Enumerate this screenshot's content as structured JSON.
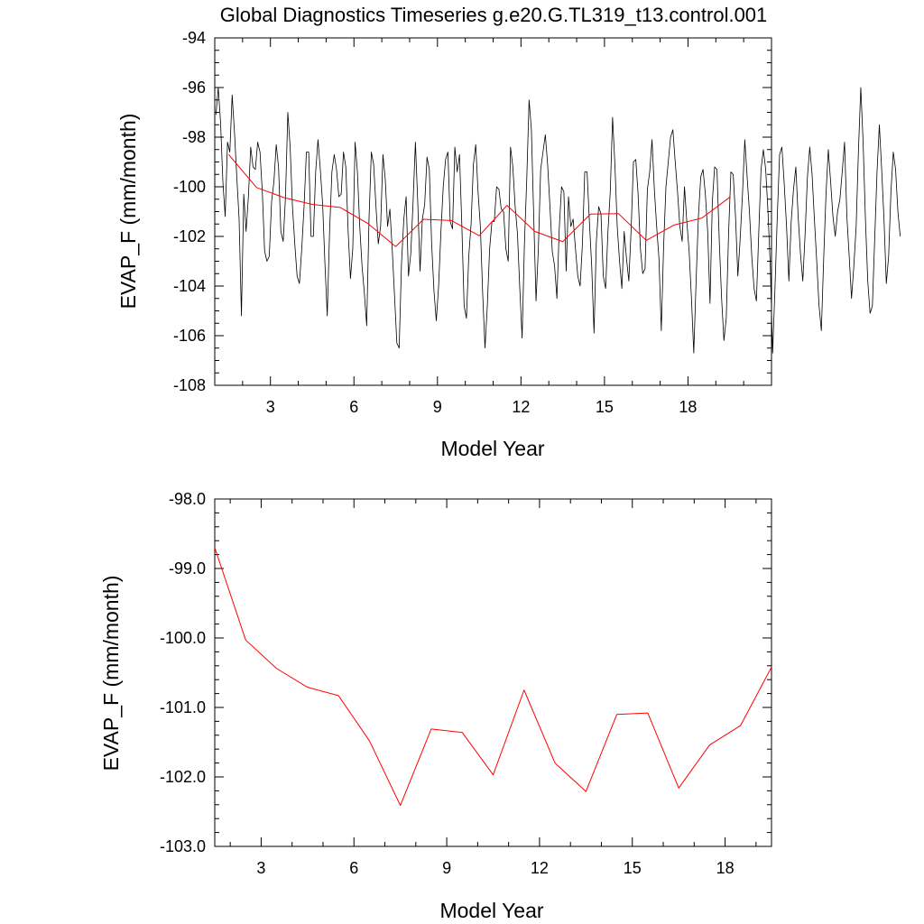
{
  "colors": {
    "monthly_line": "#000000",
    "annual_line": "#ff0000",
    "axes": "#000000",
    "background": "#ffffff"
  },
  "chart_data": [
    {
      "type": "line",
      "title": "Global Diagnostics Timeseries g.e20.G.TL319_t13.control.001",
      "xlabel": "Model Year",
      "ylabel": "EVAP_F (mm/month)",
      "xlim": [
        1,
        21
      ],
      "ylim": [
        -108,
        -94
      ],
      "xticks": [
        3,
        6,
        9,
        12,
        15,
        18
      ],
      "xtick_labels": [
        "3",
        "6",
        "9",
        "12",
        "15",
        "18"
      ],
      "yticks": [
        -108,
        -106,
        -104,
        -102,
        -100,
        -98,
        -96,
        -94
      ],
      "ytick_labels": [
        "-108",
        "-106",
        "-104",
        "-102",
        "-100",
        "-98",
        "-96",
        "-94"
      ],
      "series": [
        {
          "name": "monthly",
          "color": "#000000",
          "x_start": 1.0417,
          "x_step": 0.08333,
          "values": [
            -97.1,
            -96.0,
            -97.4,
            -99.8,
            -101.2,
            -98.2,
            -98.6,
            -96.3,
            -97.8,
            -99.6,
            -101.3,
            -105.2,
            -100.3,
            -101.8,
            -100.4,
            -98.4,
            -99.2,
            -99.3,
            -98.2,
            -98.6,
            -100.2,
            -102.6,
            -103.0,
            -102.8,
            -100.6,
            -99.8,
            -98.3,
            -99.2,
            -101.8,
            -102.2,
            -100.4,
            -97.0,
            -98.4,
            -100.8,
            -102.3,
            -103.6,
            -103.9,
            -102.5,
            -100.8,
            -98.6,
            -98.6,
            -102.0,
            -102.0,
            -99.4,
            -98.1,
            -99.3,
            -100.7,
            -103.1,
            -105.2,
            -101.8,
            -99.4,
            -98.7,
            -99.3,
            -100.4,
            -100.3,
            -98.6,
            -99.2,
            -101.8,
            -103.7,
            -102.5,
            -98.2,
            -99.4,
            -101.6,
            -103.2,
            -104.3,
            -105.6,
            -101.3,
            -98.6,
            -99.1,
            -100.8,
            -102.3,
            -101.6,
            -98.7,
            -99.7,
            -101.6,
            -100.9,
            -102.5,
            -104.4,
            -106.3,
            -106.5,
            -103.1,
            -101.3,
            -100.4,
            -103.6,
            -102.7,
            -100.6,
            -98.2,
            -100.6,
            -103.4,
            -101.3,
            -100.7,
            -98.8,
            -99.3,
            -102.3,
            -104.2,
            -105.4,
            -104.0,
            -101.8,
            -100.0,
            -98.9,
            -98.6,
            -101.4,
            -101.7,
            -98.4,
            -99.4,
            -98.7,
            -101.5,
            -104.8,
            -105.3,
            -102.8,
            -101.5,
            -99.1,
            -98.3,
            -100.2,
            -101.6,
            -104.3,
            -106.5,
            -104.8,
            -102.5,
            -101.4,
            -101.4,
            -100.0,
            -100.1,
            -100.9,
            -101.0,
            -102.5,
            -103.0,
            -98.4,
            -99.2,
            -100.8,
            -101.9,
            -104.1,
            -106.1,
            -102.3,
            -99.7,
            -96.5,
            -97.7,
            -101.2,
            -104.6,
            -102.5,
            -99.3,
            -98.6,
            -97.9,
            -99.1,
            -100.8,
            -102.6,
            -103.2,
            -104.5,
            -101.7,
            -100.0,
            -100.2,
            -103.4,
            -100.4,
            -101.6,
            -101.3,
            -102.5,
            -103.6,
            -104.0,
            -102.3,
            -99.4,
            -99.4,
            -101.4,
            -103.2,
            -105.9,
            -102.2,
            -100.8,
            -101.1,
            -103.6,
            -104.1,
            -101.8,
            -100.2,
            -97.2,
            -99.1,
            -101.6,
            -103.0,
            -104.1,
            -101.8,
            -102.9,
            -103.8,
            -101.7,
            -99.0,
            -98.9,
            -100.3,
            -102.5,
            -103.5,
            -103.3,
            -100.1,
            -99.4,
            -98.1,
            -100.1,
            -101.6,
            -102.9,
            -105.8,
            -102.4,
            -100.0,
            -99.0,
            -98.0,
            -97.7,
            -99.0,
            -100.2,
            -101.6,
            -102.2,
            -100.0,
            -101.4,
            -102.6,
            -104.5,
            -106.7,
            -103.8,
            -101.2,
            -99.6,
            -99.3,
            -100.3,
            -101.8,
            -104.7,
            -100.6,
            -99.2,
            -99.3,
            -102.2,
            -104.5,
            -106.2,
            -105.3,
            -101.9,
            -99.4,
            -99.5,
            -101.2,
            -103.6,
            -102.1,
            -100.3,
            -98.1,
            -99.6,
            -101.0,
            -102.8,
            -104.1,
            -104.6,
            -101.9,
            -99.3,
            -98.5,
            -99.3,
            -101.0,
            -103.2,
            -106.7,
            -104.1,
            -101.2,
            -98.7,
            -98.4,
            -99.9,
            -101.6,
            -103.8,
            -101.4,
            -100.1,
            -99.2,
            -101.2,
            -102.7,
            -103.8,
            -101.9,
            -99.6,
            -98.4,
            -99.5,
            -101.3,
            -103.0,
            -104.8,
            -105.8,
            -102.9,
            -100.3,
            -98.5,
            -99.8,
            -101.2,
            -102.0,
            -101.0,
            -100.5,
            -99.4,
            -98.2,
            -101.2,
            -102.8,
            -104.5,
            -103.2,
            -101.6,
            -98.5,
            -96.0,
            -98.2,
            -101.3,
            -103.8,
            -105.1,
            -104.8,
            -102.1,
            -99.4,
            -97.5,
            -99.3,
            -101.3,
            -103.9,
            -102.8,
            -100.2,
            -98.6,
            -99.3,
            -101.0,
            -102.0
          ]
        },
        {
          "name": "annual",
          "color": "#ff0000",
          "x": [
            1.5,
            2.5,
            3.5,
            4.5,
            5.5,
            6.5,
            7.5,
            8.5,
            9.5,
            10.5,
            11.5,
            12.5,
            13.5,
            14.5,
            15.5,
            16.5,
            17.5,
            18.5,
            19.5
          ],
          "values": [
            -98.7,
            -100.03,
            -100.44,
            -100.71,
            -100.83,
            -101.48,
            -102.41,
            -101.31,
            -101.36,
            -101.97,
            -100.75,
            -101.8,
            -102.21,
            -101.1,
            -101.08,
            -102.16,
            -101.54,
            -101.26,
            -100.42
          ]
        }
      ]
    },
    {
      "type": "line",
      "title": "",
      "xlabel": "Model Year",
      "ylabel": "EVAP_F (mm/month)",
      "xlim": [
        1.5,
        19.5
      ],
      "ylim": [
        -103.0,
        -98.0
      ],
      "xticks": [
        3,
        6,
        9,
        12,
        15,
        18
      ],
      "xtick_labels": [
        "3",
        "6",
        "9",
        "12",
        "15",
        "18"
      ],
      "yticks": [
        -103.0,
        -102.0,
        -101.0,
        -100.0,
        -99.0,
        -98.0
      ],
      "ytick_labels": [
        "-103.0",
        "-102.0",
        "-101.0",
        "-100.0",
        "-99.0",
        "-98.0"
      ],
      "series": [
        {
          "name": "annual",
          "color": "#ff0000",
          "x": [
            1.5,
            2.5,
            3.5,
            4.5,
            5.5,
            6.5,
            7.5,
            8.5,
            9.5,
            10.5,
            11.5,
            12.5,
            13.5,
            14.5,
            15.5,
            16.5,
            17.5,
            18.5,
            19.5
          ],
          "values": [
            -98.7,
            -100.03,
            -100.44,
            -100.71,
            -100.83,
            -101.48,
            -102.41,
            -101.31,
            -101.36,
            -101.97,
            -100.75,
            -101.8,
            -102.21,
            -101.1,
            -101.08,
            -102.16,
            -101.54,
            -101.26,
            -100.42
          ]
        }
      ]
    }
  ]
}
